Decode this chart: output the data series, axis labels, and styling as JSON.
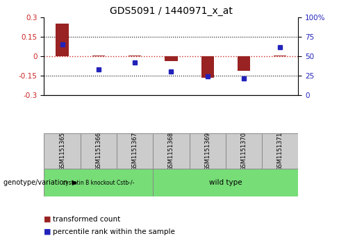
{
  "title": "GDS5091 / 1440971_x_at",
  "samples": [
    "GSM1151365",
    "GSM1151366",
    "GSM1151367",
    "GSM1151368",
    "GSM1151369",
    "GSM1151370",
    "GSM1151371"
  ],
  "transformed_counts": [
    0.255,
    0.008,
    0.008,
    -0.038,
    -0.165,
    -0.115,
    0.004
  ],
  "percentile_ranks": [
    65,
    33,
    42,
    30,
    24,
    21,
    62
  ],
  "ylim_left": [
    -0.3,
    0.3
  ],
  "ylim_right": [
    0,
    100
  ],
  "yticks_left": [
    -0.3,
    -0.15,
    0,
    0.15,
    0.3
  ],
  "yticks_right": [
    0,
    25,
    50,
    75,
    100
  ],
  "bar_color": "#992222",
  "dot_color": "#2222bb",
  "hline_color": "#cc2222",
  "grid_color": "#000000",
  "grid_lines": [
    -0.15,
    0.15
  ],
  "sample_box_color": "#cccccc",
  "group1_color": "#77dd77",
  "group2_color": "#77dd77",
  "group1_label": "cystatin B knockout Cstb-/-",
  "group2_label": "wild type",
  "group_label_text": "genotype/variation",
  "legend_bar_label": "transformed count",
  "legend_dot_label": "percentile rank within the sample",
  "bar_width": 0.35
}
